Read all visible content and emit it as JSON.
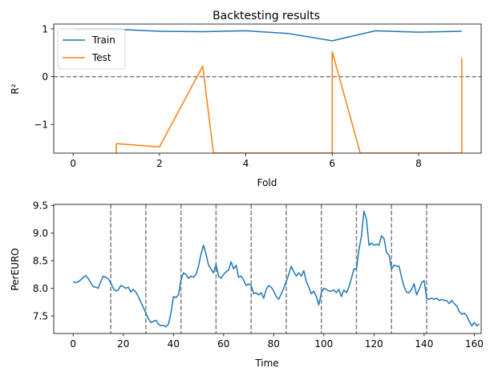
{
  "chart_data": [
    {
      "type": "line",
      "title": "Backtesting results",
      "xlabel": "Fold",
      "ylabel": "R²",
      "xlim": [
        -0.45,
        9.45
      ],
      "ylim": [
        -1.6,
        1.1
      ],
      "xticks": [
        0,
        2,
        4,
        6,
        8
      ],
      "yticks": [
        -1,
        0,
        1
      ],
      "ytick_labels": [
        "−1",
        "0",
        "1"
      ],
      "grid": false,
      "legend_position": "top-left",
      "reference_line": {
        "y": 0,
        "style": "dashed",
        "color": "#808080"
      },
      "series": [
        {
          "name": "Train",
          "color": "#1f77b4",
          "points": [
            [
              0,
              0.99
            ],
            [
              1,
              0.99
            ],
            [
              2,
              0.95
            ],
            [
              3,
              0.94
            ],
            [
              4,
              0.96
            ],
            [
              5,
              0.9
            ],
            [
              6,
              0.75
            ],
            [
              7,
              0.96
            ],
            [
              8,
              0.93
            ],
            [
              9,
              0.95
            ]
          ]
        },
        {
          "name": "Test",
          "color": "#ff7f0e",
          "points": [
            [
              1,
              -1.6
            ],
            [
              1,
              -1.4
            ],
            [
              2,
              -1.47
            ],
            [
              3,
              0.22
            ],
            [
              3.25,
              -1.6
            ],
            [
              6,
              -1.6
            ],
            [
              6,
              0.52
            ],
            [
              6.65,
              -1.6
            ],
            [
              9,
              -1.6
            ],
            [
              9,
              0.39
            ]
          ]
        }
      ]
    },
    {
      "type": "line",
      "title": "",
      "xlabel": "Time",
      "ylabel": "PerEURO",
      "xlim": [
        -7.75,
        162.75
      ],
      "ylim": [
        7.18,
        9.52
      ],
      "xticks": [
        0,
        20,
        40,
        60,
        80,
        100,
        120,
        140,
        160
      ],
      "yticks": [
        7.5,
        8.0,
        8.5,
        9.0,
        9.5
      ],
      "ytick_labels": [
        "7.5",
        "8.0",
        "8.5",
        "9.0",
        "9.5"
      ],
      "grid": false,
      "vertical_lines": [
        15,
        29,
        43,
        57,
        71,
        85,
        99,
        113,
        127,
        141
      ],
      "vertical_line_style": {
        "style": "dashed",
        "color": "#808080"
      },
      "series": [
        {
          "name": "",
          "color": "#1f77b4",
          "points": [
            [
              0,
              8.12
            ],
            [
              1,
              8.1
            ],
            [
              2,
              8.12
            ],
            [
              3,
              8.15
            ],
            [
              4,
              8.2
            ],
            [
              5,
              8.23
            ],
            [
              6,
              8.18
            ],
            [
              7,
              8.1
            ],
            [
              8,
              8.03
            ],
            [
              9,
              8.02
            ],
            [
              10,
              8.0
            ],
            [
              11,
              8.12
            ],
            [
              12,
              8.22
            ],
            [
              13,
              8.2
            ],
            [
              14,
              8.17
            ],
            [
              15,
              8.1
            ],
            [
              16,
              8.0
            ],
            [
              17,
              7.95
            ],
            [
              18,
              7.97
            ],
            [
              19,
              8.05
            ],
            [
              20,
              8.03
            ],
            [
              21,
              8.0
            ],
            [
              22,
              8.02
            ],
            [
              23,
              7.93
            ],
            [
              24,
              7.98
            ],
            [
              25,
              7.93
            ],
            [
              26,
              7.85
            ],
            [
              27,
              7.75
            ],
            [
              28,
              7.65
            ],
            [
              29,
              7.55
            ],
            [
              30,
              7.45
            ],
            [
              31,
              7.38
            ],
            [
              32,
              7.4
            ],
            [
              33,
              7.42
            ],
            [
              34,
              7.35
            ],
            [
              35,
              7.32
            ],
            [
              36,
              7.33
            ],
            [
              37,
              7.3
            ],
            [
              38,
              7.35
            ],
            [
              39,
              7.55
            ],
            [
              40,
              7.85
            ],
            [
              41,
              7.83
            ],
            [
              42,
              7.88
            ],
            [
              43,
              8.15
            ],
            [
              44,
              8.28
            ],
            [
              45,
              8.25
            ],
            [
              46,
              8.18
            ],
            [
              47,
              8.22
            ],
            [
              48,
              8.2
            ],
            [
              49,
              8.25
            ],
            [
              50,
              8.4
            ],
            [
              51,
              8.62
            ],
            [
              52,
              8.78
            ],
            [
              53,
              8.62
            ],
            [
              54,
              8.42
            ],
            [
              55,
              8.35
            ],
            [
              56,
              8.28
            ],
            [
              57,
              8.43
            ],
            [
              58,
              8.22
            ],
            [
              59,
              8.18
            ],
            [
              60,
              8.25
            ],
            [
              61,
              8.3
            ],
            [
              62,
              8.33
            ],
            [
              63,
              8.48
            ],
            [
              64,
              8.35
            ],
            [
              65,
              8.42
            ],
            [
              66,
              8.2
            ],
            [
              67,
              8.22
            ],
            [
              68,
              8.15
            ],
            [
              69,
              8.05
            ],
            [
              70,
              8.08
            ],
            [
              71,
              8.05
            ],
            [
              72,
              7.9
            ],
            [
              73,
              7.92
            ],
            [
              74,
              7.88
            ],
            [
              75,
              7.92
            ],
            [
              76,
              7.82
            ],
            [
              77,
              7.98
            ],
            [
              78,
              8.05
            ],
            [
              79,
              8.02
            ],
            [
              80,
              7.95
            ],
            [
              81,
              7.85
            ],
            [
              82,
              7.8
            ],
            [
              83,
              7.9
            ],
            [
              84,
              8.0
            ],
            [
              85,
              8.12
            ],
            [
              86,
              8.25
            ],
            [
              87,
              8.4
            ],
            [
              88,
              8.3
            ],
            [
              89,
              8.22
            ],
            [
              90,
              8.28
            ],
            [
              91,
              8.22
            ],
            [
              92,
              8.32
            ],
            [
              93,
              8.12
            ],
            [
              94,
              8.02
            ],
            [
              95,
              7.9
            ],
            [
              96,
              7.95
            ],
            [
              97,
              7.85
            ],
            [
              98,
              7.7
            ],
            [
              99,
              7.92
            ],
            [
              100,
              8.0
            ],
            [
              101,
              7.98
            ],
            [
              102,
              7.95
            ],
            [
              103,
              7.95
            ],
            [
              104,
              7.97
            ],
            [
              105,
              7.92
            ],
            [
              106,
              7.98
            ],
            [
              107,
              7.85
            ],
            [
              108,
              7.97
            ],
            [
              109,
              7.92
            ],
            [
              110,
              8.02
            ],
            [
              111,
              8.18
            ],
            [
              112,
              8.35
            ],
            [
              113,
              8.35
            ],
            [
              114,
              8.7
            ],
            [
              115,
              8.95
            ],
            [
              116,
              9.4
            ],
            [
              117,
              9.25
            ],
            [
              118,
              8.78
            ],
            [
              119,
              8.82
            ],
            [
              120,
              8.78
            ],
            [
              121,
              8.8
            ],
            [
              122,
              8.78
            ],
            [
              123,
              8.95
            ],
            [
              124,
              8.9
            ],
            [
              125,
              8.65
            ],
            [
              126,
              8.6
            ],
            [
              127,
              8.35
            ],
            [
              128,
              8.42
            ],
            [
              129,
              8.4
            ],
            [
              130,
              8.4
            ],
            [
              131,
              8.2
            ],
            [
              132,
              8.03
            ],
            [
              133,
              7.93
            ],
            [
              134,
              7.92
            ],
            [
              135,
              7.98
            ],
            [
              136,
              8.08
            ],
            [
              137,
              7.88
            ],
            [
              138,
              7.98
            ],
            [
              139,
              8.1
            ],
            [
              140,
              8.14
            ],
            [
              141,
              7.82
            ],
            [
              142,
              7.8
            ],
            [
              143,
              7.82
            ],
            [
              144,
              7.8
            ],
            [
              145,
              7.82
            ],
            [
              146,
              7.78
            ],
            [
              147,
              7.8
            ],
            [
              148,
              7.78
            ],
            [
              149,
              7.78
            ],
            [
              150,
              7.72
            ],
            [
              151,
              7.78
            ],
            [
              152,
              7.72
            ],
            [
              153,
              7.68
            ],
            [
              154,
              7.58
            ],
            [
              155,
              7.53
            ],
            [
              156,
              7.55
            ],
            [
              157,
              7.5
            ],
            [
              158,
              7.4
            ],
            [
              159,
              7.32
            ],
            [
              160,
              7.38
            ],
            [
              161,
              7.32
            ],
            [
              162,
              7.35
            ]
          ]
        }
      ]
    }
  ]
}
